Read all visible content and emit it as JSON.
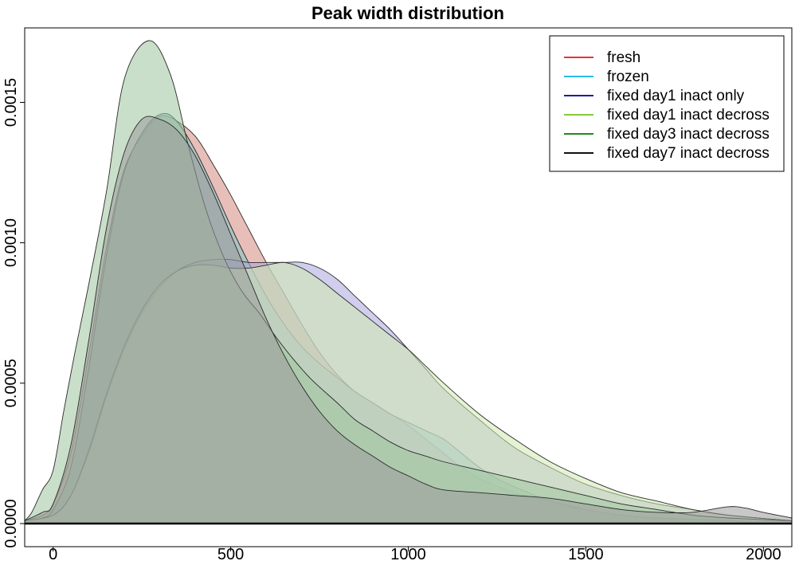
{
  "chart_data": {
    "type": "area",
    "title": "Peak width distribution",
    "xlabel": "",
    "ylabel": "",
    "xlim": [
      -80,
      2080
    ],
    "ylim": [
      0,
      0.00173
    ],
    "x_ticks": [
      0,
      500,
      1000,
      1500,
      2000
    ],
    "x_tick_labels": [
      "0",
      "500",
      "1000",
      "1500",
      "2000"
    ],
    "y_ticks": [
      0,
      0.0005,
      0.001,
      0.0015
    ],
    "y_tick_labels": [
      "0.0000",
      "0.0005",
      "0.0010",
      "0.0015"
    ],
    "legend_position": "top-right",
    "grid": false,
    "series": [
      {
        "name": "fresh",
        "color": "#e8343a",
        "fill": "#d58a7e",
        "points": [
          [
            -80,
            1e-05
          ],
          [
            -30,
            3e-05
          ],
          [
            0,
            7e-05
          ],
          [
            50,
            0.00025
          ],
          [
            100,
            0.0006
          ],
          [
            150,
            0.00098
          ],
          [
            200,
            0.00126
          ],
          [
            260,
            0.0014
          ],
          [
            300,
            0.00145
          ],
          [
            340,
            0.00144
          ],
          [
            400,
            0.00138
          ],
          [
            450,
            0.00128
          ],
          [
            500,
            0.00117
          ],
          [
            550,
            0.00105
          ],
          [
            600,
            0.00093
          ],
          [
            650,
            0.00082
          ],
          [
            700,
            0.00071
          ],
          [
            750,
            0.00061
          ],
          [
            800,
            0.00053
          ],
          [
            850,
            0.00047
          ],
          [
            900,
            0.00043
          ],
          [
            950,
            0.00039
          ],
          [
            1000,
            0.00035
          ],
          [
            1050,
            0.0003
          ],
          [
            1100,
            0.00025
          ],
          [
            1150,
            0.0002
          ],
          [
            1200,
            0.00016
          ],
          [
            1300,
            0.00011
          ],
          [
            1400,
            8e-05
          ],
          [
            1500,
            5e-05
          ],
          [
            1600,
            3e-05
          ],
          [
            1700,
            2e-05
          ],
          [
            1800,
            1.5e-05
          ],
          [
            1900,
            1e-05
          ],
          [
            2080,
            5e-06
          ]
        ]
      },
      {
        "name": "frozen",
        "color": "#29b9e8",
        "fill": "#7ec4c6",
        "points": [
          [
            -80,
            1e-05
          ],
          [
            -30,
            2e-05
          ],
          [
            0,
            5e-05
          ],
          [
            50,
            0.0002
          ],
          [
            100,
            0.00055
          ],
          [
            150,
            0.00095
          ],
          [
            200,
            0.00125
          ],
          [
            260,
            0.00141
          ],
          [
            310,
            0.00146
          ],
          [
            350,
            0.00143
          ],
          [
            400,
            0.00133
          ],
          [
            450,
            0.0012
          ],
          [
            500,
            0.00106
          ],
          [
            550,
            0.00093
          ],
          [
            600,
            0.00081
          ],
          [
            650,
            0.00071
          ],
          [
            700,
            0.00063
          ],
          [
            750,
            0.00057
          ],
          [
            800,
            0.00052
          ],
          [
            850,
            0.00047
          ],
          [
            900,
            0.00043
          ],
          [
            950,
            0.00039
          ],
          [
            1000,
            0.00036
          ],
          [
            1050,
            0.00033
          ],
          [
            1100,
            0.0003
          ],
          [
            1150,
            0.00025
          ],
          [
            1200,
            0.0002
          ],
          [
            1250,
            0.00016
          ],
          [
            1300,
            0.00013
          ],
          [
            1400,
            8e-05
          ],
          [
            1500,
            5e-05
          ],
          [
            1600,
            3e-05
          ],
          [
            1700,
            2e-05
          ],
          [
            1800,
            1.5e-05
          ],
          [
            2080,
            5e-06
          ]
        ]
      },
      {
        "name": "fixed day1 inact only",
        "color": "#1a1e9e",
        "fill": "#a9a6dc",
        "points": [
          [
            -80,
            1e-05
          ],
          [
            0,
            3e-05
          ],
          [
            50,
            0.0001
          ],
          [
            100,
            0.00025
          ],
          [
            150,
            0.00045
          ],
          [
            200,
            0.00062
          ],
          [
            250,
            0.00075
          ],
          [
            300,
            0.00084
          ],
          [
            350,
            0.0009
          ],
          [
            400,
            0.00093
          ],
          [
            450,
            0.00094
          ],
          [
            500,
            0.00094
          ],
          [
            550,
            0.00093
          ],
          [
            600,
            0.00093
          ],
          [
            650,
            0.00093
          ],
          [
            700,
            0.00093
          ],
          [
            750,
            0.00091
          ],
          [
            800,
            0.00087
          ],
          [
            850,
            0.00081
          ],
          [
            900,
            0.00075
          ],
          [
            950,
            0.00069
          ],
          [
            1000,
            0.00062
          ],
          [
            1050,
            0.00055
          ],
          [
            1100,
            0.00048
          ],
          [
            1200,
            0.00037
          ],
          [
            1300,
            0.00027
          ],
          [
            1400,
            0.0002
          ],
          [
            1500,
            0.00014
          ],
          [
            1600,
            0.0001
          ],
          [
            1700,
            7e-05
          ],
          [
            1800,
            5e-05
          ],
          [
            1900,
            3e-05
          ],
          [
            2080,
            1e-05
          ]
        ]
      },
      {
        "name": "fixed day1 inact decross",
        "color": "#86c93e",
        "fill": "#cfe9b0",
        "points": [
          [
            -80,
            1e-05
          ],
          [
            0,
            3e-05
          ],
          [
            50,
            0.0001
          ],
          [
            100,
            0.00026
          ],
          [
            150,
            0.00046
          ],
          [
            200,
            0.00063
          ],
          [
            250,
            0.00076
          ],
          [
            300,
            0.00085
          ],
          [
            350,
            0.0009
          ],
          [
            400,
            0.00092
          ],
          [
            450,
            0.00092
          ],
          [
            500,
            0.00091
          ],
          [
            550,
            0.00091
          ],
          [
            600,
            0.00092
          ],
          [
            650,
            0.00093
          ],
          [
            700,
            0.00091
          ],
          [
            750,
            0.00087
          ],
          [
            800,
            0.00082
          ],
          [
            850,
            0.00077
          ],
          [
            900,
            0.00072
          ],
          [
            950,
            0.00067
          ],
          [
            1000,
            0.00062
          ],
          [
            1050,
            0.00056
          ],
          [
            1100,
            0.0005
          ],
          [
            1200,
            0.00039
          ],
          [
            1300,
            0.0003
          ],
          [
            1400,
            0.00022
          ],
          [
            1500,
            0.00016
          ],
          [
            1600,
            0.00011
          ],
          [
            1700,
            8e-05
          ],
          [
            1800,
            5e-05
          ],
          [
            1900,
            3e-05
          ],
          [
            2080,
            1e-05
          ]
        ]
      },
      {
        "name": "fixed day3 inact decross",
        "color": "#1e8a1e",
        "fill": "#9ec49e",
        "points": [
          [
            -80,
            1e-05
          ],
          [
            -60,
            4e-05
          ],
          [
            -30,
            0.00012
          ],
          [
            0,
            0.00019
          ],
          [
            30,
            0.0004
          ],
          [
            60,
            0.0006
          ],
          [
            100,
            0.00085
          ],
          [
            150,
            0.00118
          ],
          [
            200,
            0.00158
          ],
          [
            270,
            0.00172
          ],
          [
            330,
            0.0016
          ],
          [
            380,
            0.00135
          ],
          [
            430,
            0.00112
          ],
          [
            480,
            0.00095
          ],
          [
            530,
            0.00083
          ],
          [
            580,
            0.00075
          ],
          [
            630,
            0.00066
          ],
          [
            680,
            0.00058
          ],
          [
            730,
            0.00051
          ],
          [
            800,
            0.00043
          ],
          [
            850,
            0.00037
          ],
          [
            900,
            0.00033
          ],
          [
            950,
            0.00029
          ],
          [
            1000,
            0.00026
          ],
          [
            1050,
            0.00024
          ],
          [
            1100,
            0.00022
          ],
          [
            1200,
            0.00019
          ],
          [
            1300,
            0.00016
          ],
          [
            1400,
            0.00013
          ],
          [
            1500,
            0.0001
          ],
          [
            1600,
            7e-05
          ],
          [
            1700,
            5e-05
          ],
          [
            1800,
            3e-05
          ],
          [
            1900,
            2e-05
          ],
          [
            2080,
            1e-05
          ]
        ]
      },
      {
        "name": "fixed day7 inact decross",
        "color": "#111111",
        "fill": "#9a9a9a",
        "points": [
          [
            -80,
            1e-05
          ],
          [
            -30,
            4e-05
          ],
          [
            0,
            7e-05
          ],
          [
            50,
            0.00028
          ],
          [
            100,
            0.00065
          ],
          [
            150,
            0.00105
          ],
          [
            200,
            0.00132
          ],
          [
            250,
            0.00144
          ],
          [
            300,
            0.00144
          ],
          [
            350,
            0.0014
          ],
          [
            400,
            0.00131
          ],
          [
            450,
            0.00118
          ],
          [
            500,
            0.00103
          ],
          [
            550,
            0.00088
          ],
          [
            600,
            0.00073
          ],
          [
            650,
            0.0006
          ],
          [
            700,
            0.00049
          ],
          [
            750,
            0.0004
          ],
          [
            800,
            0.00033
          ],
          [
            850,
            0.00028
          ],
          [
            900,
            0.00024
          ],
          [
            950,
            0.0002
          ],
          [
            1000,
            0.00017
          ],
          [
            1050,
            0.00014
          ],
          [
            1100,
            0.00012
          ],
          [
            1200,
            0.00011
          ],
          [
            1300,
            0.0001
          ],
          [
            1400,
            9e-05
          ],
          [
            1500,
            7e-05
          ],
          [
            1600,
            5e-05
          ],
          [
            1700,
            4e-05
          ],
          [
            1800,
            4e-05
          ],
          [
            1900,
            6e-05
          ],
          [
            1950,
            5.5e-05
          ],
          [
            2000,
            4e-05
          ],
          [
            2080,
            2e-05
          ]
        ]
      }
    ]
  }
}
